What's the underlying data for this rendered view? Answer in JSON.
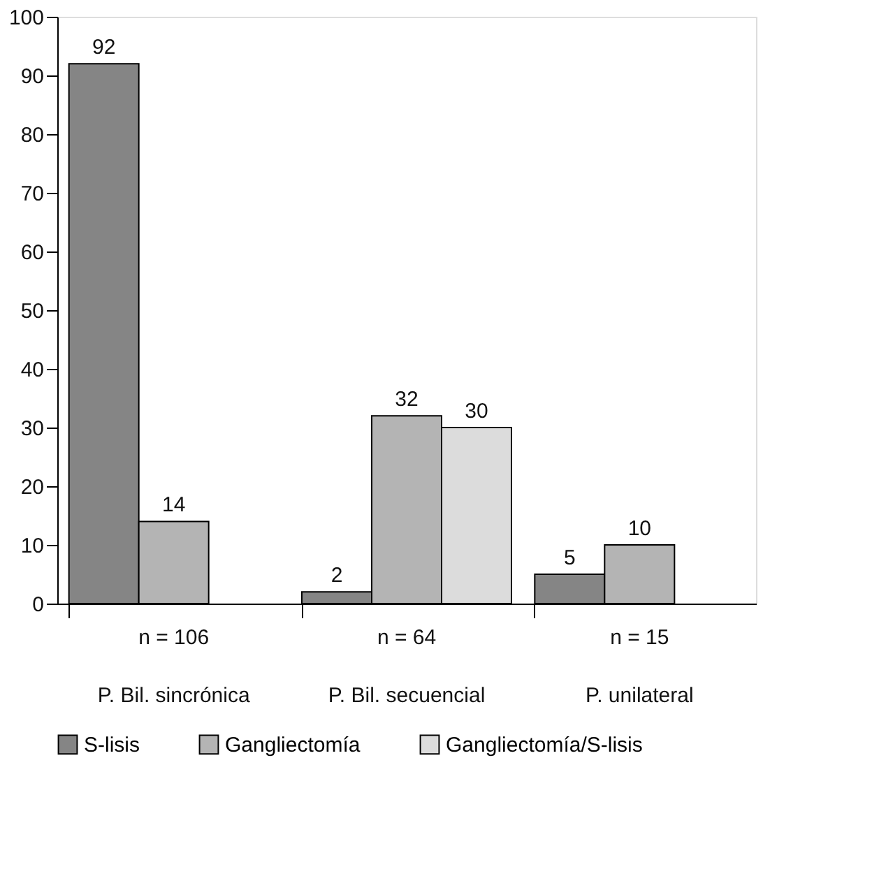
{
  "chart_data": {
    "type": "bar",
    "categories": [
      "P. Bil. sincrónica",
      "P. Bil. secuencial",
      "P. unilateral"
    ],
    "series": [
      {
        "name": "S-lisis",
        "color": "#858585",
        "values": [
          92,
          2,
          5
        ]
      },
      {
        "name": "Gangliectomía",
        "color": "#b4b4b4",
        "values": [
          14,
          32,
          10
        ]
      },
      {
        "name": "Gangliectomía/S-lisis",
        "color": "#dcdcdc",
        "values": [
          null,
          30,
          null
        ]
      }
    ],
    "annotations": [
      "n = 106",
      "n = 64",
      "n = 15"
    ],
    "ylim": [
      0,
      100
    ],
    "yticks": [
      0,
      10,
      20,
      30,
      40,
      50,
      60,
      70,
      80,
      90,
      100
    ],
    "data_labels": true,
    "grid": false,
    "legend": "bottom"
  }
}
